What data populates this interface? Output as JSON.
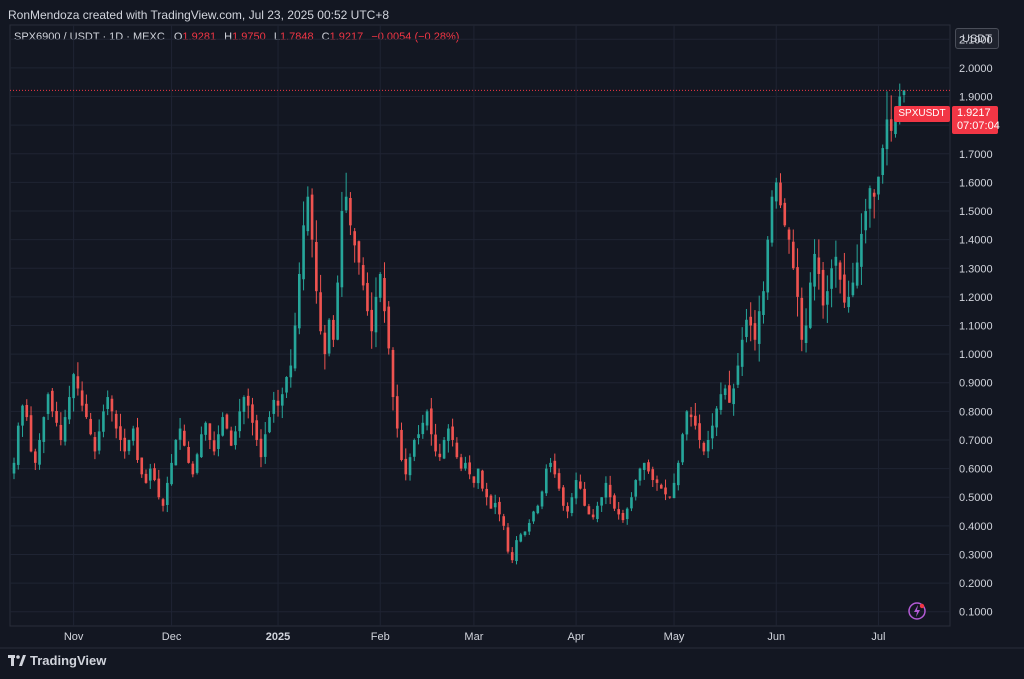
{
  "header": {
    "credit": "RonMendoza created with TradingView.com, Jul 23, 2025 00:52 UTC+8"
  },
  "legend": {
    "symbol": "SPX6900 / USDT · 1D · MEXC",
    "open_label": "O",
    "open": "1.9281",
    "high_label": "H",
    "high": "1.9750",
    "low_label": "L",
    "low": "1.7848",
    "close_label": "C",
    "close": "1.9217",
    "change": "−0.0054 (−0.28%)"
  },
  "currency_button": "USDT",
  "price_tag": {
    "symbol": "SPXUSDT",
    "price": "1.9217",
    "countdown": "07:07:04"
  },
  "footer": {
    "brand": "TradingView"
  },
  "icons": {
    "flash": "lightning-icon",
    "logo": "tradingview-logo-icon"
  },
  "colors": {
    "up": "#26a69a",
    "down": "#ef5350",
    "background": "#131722",
    "grid": "#1f2433"
  },
  "chart_data": {
    "type": "candlestick",
    "title": "SPX6900 / USDT · 1D · MEXC",
    "ylim": [
      0.05,
      2.15
    ],
    "y_ticks": [
      "0.1000",
      "0.2000",
      "0.3000",
      "0.4000",
      "0.5000",
      "0.6000",
      "0.7000",
      "0.8000",
      "0.9000",
      "1.0000",
      "1.1000",
      "1.2000",
      "1.3000",
      "1.4000",
      "1.5000",
      "1.6000",
      "1.7000",
      "1.8000",
      "1.9000",
      "2.0000",
      "2.1000"
    ],
    "x_ticks": [
      {
        "label": "Nov",
        "bold": false
      },
      {
        "label": "Dec",
        "bold": false
      },
      {
        "label": "2025",
        "bold": true
      },
      {
        "label": "Feb",
        "bold": false
      },
      {
        "label": "Mar",
        "bold": false
      },
      {
        "label": "Apr",
        "bold": false
      },
      {
        "label": "May",
        "bold": false
      },
      {
        "label": "Jun",
        "bold": false
      },
      {
        "label": "Jul",
        "bold": false
      }
    ],
    "last_price": 1.9217,
    "closes": [
      0.62,
      0.75,
      0.82,
      0.78,
      0.66,
      0.62,
      0.7,
      0.78,
      0.86,
      0.8,
      0.76,
      0.7,
      0.78,
      0.85,
      0.93,
      0.88,
      0.82,
      0.78,
      0.72,
      0.66,
      0.73,
      0.8,
      0.85,
      0.8,
      0.74,
      0.7,
      0.66,
      0.7,
      0.74,
      0.63,
      0.58,
      0.55,
      0.6,
      0.56,
      0.5,
      0.47,
      0.55,
      0.62,
      0.7,
      0.74,
      0.68,
      0.62,
      0.58,
      0.65,
      0.72,
      0.76,
      0.7,
      0.66,
      0.72,
      0.78,
      0.74,
      0.68,
      0.73,
      0.8,
      0.85,
      0.82,
      0.76,
      0.7,
      0.64,
      0.72,
      0.78,
      0.84,
      0.82,
      0.86,
      0.92,
      0.96,
      1.1,
      1.28,
      1.45,
      1.55,
      1.4,
      1.22,
      1.08,
      1.0,
      1.12,
      1.05,
      1.25,
      1.5,
      1.55,
      1.45,
      1.38,
      1.32,
      1.24,
      1.15,
      1.08,
      1.2,
      1.28,
      1.15,
      1.02,
      0.85,
      0.74,
      0.63,
      0.58,
      0.64,
      0.7,
      0.72,
      0.76,
      0.8,
      0.72,
      0.66,
      0.64,
      0.7,
      0.74,
      0.7,
      0.64,
      0.6,
      0.62,
      0.58,
      0.55,
      0.6,
      0.53,
      0.5,
      0.46,
      0.48,
      0.44,
      0.4,
      0.31,
      0.28,
      0.35,
      0.37,
      0.38,
      0.41,
      0.45,
      0.47,
      0.52,
      0.6,
      0.62,
      0.58,
      0.53,
      0.47,
      0.45,
      0.5,
      0.56,
      0.53,
      0.47,
      0.44,
      0.43,
      0.47,
      0.5,
      0.55,
      0.5,
      0.46,
      0.44,
      0.42,
      0.46,
      0.5,
      0.56,
      0.6,
      0.62,
      0.59,
      0.56,
      0.55,
      0.53,
      0.51,
      0.5,
      0.55,
      0.62,
      0.72,
      0.8,
      0.78,
      0.75,
      0.7,
      0.66,
      0.7,
      0.75,
      0.81,
      0.86,
      0.88,
      0.83,
      0.88,
      0.96,
      1.05,
      1.12,
      1.1,
      1.05,
      1.15,
      1.22,
      1.4,
      1.55,
      1.6,
      1.52,
      1.45,
      1.4,
      1.3,
      1.2,
      1.05,
      1.1,
      1.25,
      1.35,
      1.28,
      1.17,
      1.22,
      1.3,
      1.34,
      1.26,
      1.18,
      1.2,
      1.25,
      1.32,
      1.42,
      1.5,
      1.58,
      1.55,
      1.62,
      1.72,
      1.82,
      1.78,
      1.85,
      1.9,
      1.9217
    ]
  }
}
